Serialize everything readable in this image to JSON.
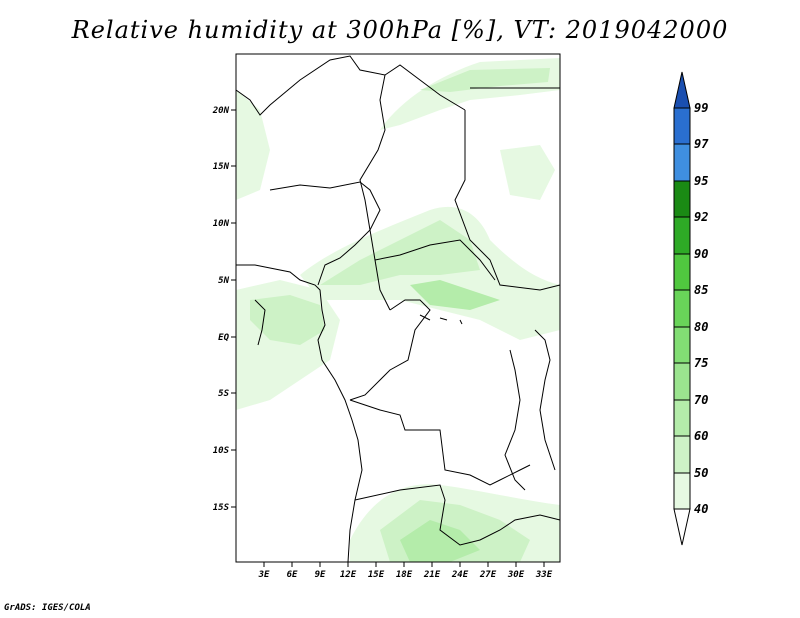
{
  "title": "Relative humidity at 300hPa [%], VT: 2019042000",
  "footer": "GrADS: IGES/COLA",
  "map": {
    "lat_labels": [
      "20N",
      "15N",
      "10N",
      "5N",
      "EQ",
      "5S",
      "10S",
      "15S"
    ],
    "lon_labels": [
      "3E",
      "6E",
      "9E",
      "12E",
      "15E",
      "18E",
      "21E",
      "24E",
      "27E",
      "30E",
      "33E"
    ]
  },
  "legend": {
    "levels": [
      "40",
      "50",
      "60",
      "70",
      "75",
      "80",
      "85",
      "90",
      "92",
      "95",
      "97",
      "99"
    ],
    "colors": [
      "#ffffff",
      "#e6f9e2",
      "#cdf2c6",
      "#b4ecaa",
      "#9be48f",
      "#82de74",
      "#69d459",
      "#50c83f",
      "#2eaa26",
      "#1a8a14",
      "#3f8fe0",
      "#2a6fd0",
      "#1a4fb0"
    ]
  }
}
